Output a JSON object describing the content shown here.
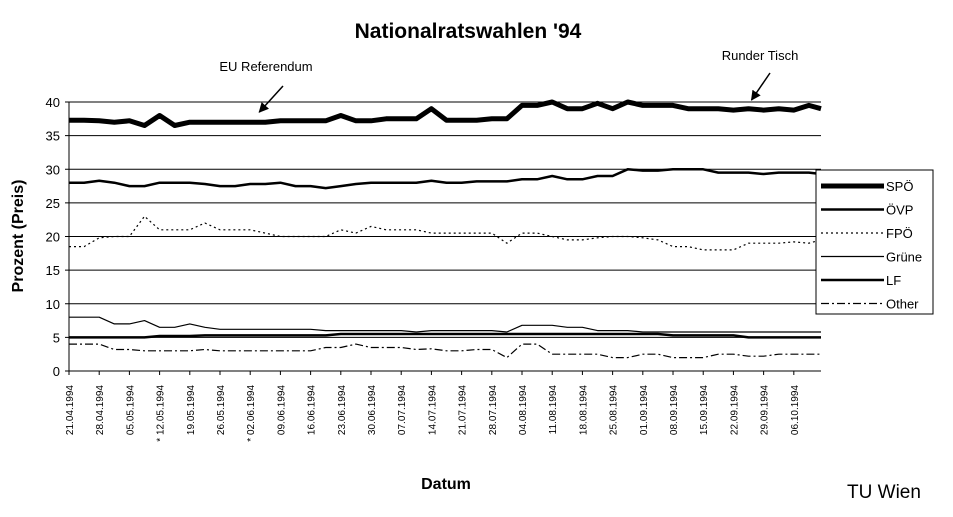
{
  "chart_data": {
    "type": "line",
    "title": "Nationalratswahlen '94",
    "xlabel": "Datum",
    "ylabel": "Prozent (Preis)",
    "ylim": [
      0,
      40
    ],
    "yticks": [
      0,
      5,
      10,
      15,
      20,
      25,
      30,
      35,
      40
    ],
    "grid": "horizontal",
    "legend_position": "right",
    "credit": "TU Wien",
    "x_tick_labels": [
      "21.04.1994",
      "28.04.1994",
      "05.05.1994",
      "* 12.05.1994",
      "19.05.1994",
      "26.05.1994",
      "* 02.06.1994",
      "09.06.1994",
      "16.06.1994",
      "23.06.1994",
      "30.06.1994",
      "07.07.1994",
      "14.07.1994",
      "21.07.1994",
      "28.07.1994",
      "04.08.1994",
      "11.08.1994",
      "18.08.1994",
      "25.08.1994",
      "01.09.1994",
      "08.09.1994",
      "15.09.1994",
      "22.09.1994",
      "29.09.1994",
      "06.10.1994"
    ],
    "annotations": [
      {
        "text": "EU Referendum",
        "week": 6.3,
        "value": 38.5
      },
      {
        "text": "Runder Tisch",
        "week": 22.6,
        "value": 40.3
      }
    ],
    "x": [
      0,
      0.5,
      1,
      1.5,
      2,
      2.5,
      3,
      3.5,
      4,
      4.5,
      5,
      5.5,
      6,
      6.5,
      7,
      7.5,
      8,
      8.5,
      9,
      9.5,
      10,
      10.5,
      11,
      11.5,
      12,
      12.5,
      13,
      13.5,
      14,
      14.5,
      15,
      15.5,
      16,
      16.5,
      17,
      17.5,
      18,
      18.5,
      19,
      19.5,
      20,
      20.5,
      21,
      21.5,
      22,
      22.5,
      23,
      23.5,
      24,
      24.5,
      24.9
    ],
    "series": [
      {
        "name": "SPÖ",
        "style": "thick",
        "color": "#000000",
        "values": [
          37.3,
          37.3,
          37.2,
          37,
          37.2,
          36.5,
          38,
          36.5,
          37,
          37,
          37,
          37,
          37,
          37,
          37.2,
          37.2,
          37.2,
          37.2,
          38,
          37.2,
          37.2,
          37.5,
          37.5,
          37.5,
          39,
          37.3,
          37.3,
          37.3,
          37.5,
          37.5,
          39.5,
          39.5,
          40,
          39,
          39,
          39.8,
          39,
          40,
          39.5,
          39.5,
          39.5,
          39,
          39,
          39,
          38.8,
          39,
          38.8,
          39,
          38.8,
          39.5,
          39
        ]
      },
      {
        "name": "ÖVP",
        "style": "medium",
        "color": "#000000",
        "values": [
          28,
          28,
          28.3,
          28,
          27.5,
          27.5,
          28,
          28,
          28,
          27.8,
          27.5,
          27.5,
          27.8,
          27.8,
          28,
          27.5,
          27.5,
          27.2,
          27.5,
          27.8,
          28,
          28,
          28,
          28,
          28.3,
          28,
          28,
          28.2,
          28.2,
          28.2,
          28.5,
          28.5,
          29,
          28.5,
          28.5,
          29,
          29,
          30,
          29.8,
          29.8,
          30,
          30,
          30,
          29.5,
          29.5,
          29.5,
          29.3,
          29.5,
          29.5,
          29.5,
          29.3
        ]
      },
      {
        "name": "FPÖ",
        "style": "dotted",
        "color": "#000000",
        "values": [
          18.5,
          18.5,
          19.8,
          20,
          20,
          23,
          21,
          21,
          21,
          22,
          21,
          21,
          21,
          20.5,
          20,
          20,
          20,
          20,
          21,
          20.5,
          21.5,
          21,
          21,
          21,
          20.5,
          20.5,
          20.5,
          20.5,
          20.5,
          19,
          20.5,
          20.5,
          20,
          19.5,
          19.5,
          19.8,
          20,
          20,
          19.8,
          19.5,
          18.5,
          18.5,
          18,
          18,
          18,
          19,
          19,
          19,
          19.2,
          19,
          19.5
        ]
      },
      {
        "name": "Grüne",
        "style": "thin",
        "color": "#000000",
        "values": [
          8,
          8,
          8,
          7,
          7,
          7.5,
          6.5,
          6.5,
          7,
          6.5,
          6.2,
          6.2,
          6.2,
          6.2,
          6.2,
          6.2,
          6.2,
          6,
          6,
          6,
          6,
          6,
          6,
          5.8,
          6,
          6,
          6,
          6,
          6,
          5.8,
          6.8,
          6.8,
          6.8,
          6.5,
          6.5,
          6,
          6,
          6,
          5.8,
          5.8,
          5.8,
          5.8,
          5.8,
          5.8,
          5.8,
          5.8,
          5.8,
          5.8,
          5.8,
          5.8,
          5.8
        ]
      },
      {
        "name": "LF",
        "style": "medium",
        "color": "#000000",
        "values": [
          5,
          5,
          5,
          5,
          5,
          5,
          5.2,
          5.2,
          5.2,
          5.3,
          5.3,
          5.3,
          5.3,
          5.3,
          5.3,
          5.3,
          5.3,
          5.3,
          5.5,
          5.5,
          5.5,
          5.5,
          5.5,
          5.5,
          5.5,
          5.5,
          5.5,
          5.5,
          5.5,
          5.5,
          5.5,
          5.5,
          5.5,
          5.5,
          5.5,
          5.5,
          5.5,
          5.5,
          5.5,
          5.5,
          5.3,
          5.3,
          5.3,
          5.3,
          5.3,
          5,
          5,
          5,
          5,
          5,
          5
        ]
      },
      {
        "name": "Other",
        "style": "dashdot",
        "color": "#000000",
        "values": [
          4,
          4,
          4,
          3.2,
          3.2,
          3,
          3,
          3,
          3,
          3.2,
          3,
          3,
          3,
          3,
          3,
          3,
          3,
          3.5,
          3.5,
          4,
          3.5,
          3.5,
          3.5,
          3.2,
          3.3,
          3,
          3,
          3.2,
          3.2,
          2,
          4,
          4,
          2.5,
          2.5,
          2.5,
          2.5,
          2,
          2,
          2.5,
          2.5,
          2,
          2,
          2,
          2.5,
          2.5,
          2.2,
          2.2,
          2.5,
          2.5,
          2.5,
          2.5
        ]
      }
    ]
  }
}
